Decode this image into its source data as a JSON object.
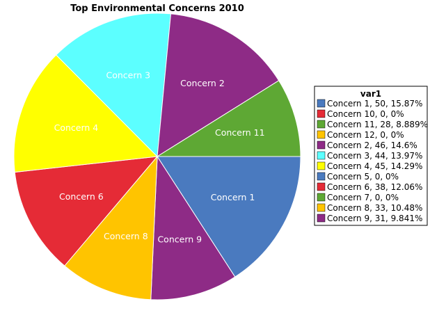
{
  "chart_data": {
    "type": "pie",
    "title": "Top Environmental Concerns 2010",
    "legend_title": "var1",
    "legend_position": "right",
    "slices": [
      {
        "label": "Concern 1",
        "value": 50,
        "percent": "15.87%",
        "color": "#4a7abf",
        "legend": "Concern 1, 50, 15.87%"
      },
      {
        "label": "Concern 10",
        "value": 0,
        "percent": "0%",
        "color": "#e52b36",
        "legend": "Concern 10, 0, 0%"
      },
      {
        "label": "Concern 11",
        "value": 28,
        "percent": "8.889%",
        "color": "#5ea834",
        "legend": "Concern 11, 28, 8.889%"
      },
      {
        "label": "Concern 12",
        "value": 0,
        "percent": "0%",
        "color": "#ffc400",
        "legend": "Concern 12, 0, 0%"
      },
      {
        "label": "Concern 2",
        "value": 46,
        "percent": "14.6%",
        "color": "#8e2b86",
        "legend": "Concern 2, 46, 14.6%"
      },
      {
        "label": "Concern 3",
        "value": 44,
        "percent": "13.97%",
        "color": "#5cffff",
        "legend": "Concern 3, 44, 13.97%"
      },
      {
        "label": "Concern 4",
        "value": 45,
        "percent": "14.29%",
        "color": "#ffff00",
        "legend": "Concern 4, 45, 14.29%"
      },
      {
        "label": "Concern 5",
        "value": 0,
        "percent": "0%",
        "color": "#4a7abf",
        "legend": "Concern 5, 0, 0%"
      },
      {
        "label": "Concern 6",
        "value": 38,
        "percent": "12.06%",
        "color": "#e52b36",
        "legend": "Concern 6, 38, 12.06%"
      },
      {
        "label": "Concern 7",
        "value": 0,
        "percent": "0%",
        "color": "#5ea834",
        "legend": "Concern 7, 0, 0%"
      },
      {
        "label": "Concern 8",
        "value": 33,
        "percent": "10.48%",
        "color": "#ffc400",
        "legend": "Concern 8, 33, 10.48%"
      },
      {
        "label": "Concern 9",
        "value": 31,
        "percent": "9.841%",
        "color": "#8e2b86",
        "legend": "Concern 9, 31, 9.841%"
      }
    ],
    "slice_order": [
      "Concern 1",
      "Concern 9",
      "Concern 8",
      "Concern 6",
      "Concern 4",
      "Concern 3",
      "Concern 2",
      "Concern 11"
    ],
    "start_angle_deg": 0,
    "direction": "clockwise"
  }
}
